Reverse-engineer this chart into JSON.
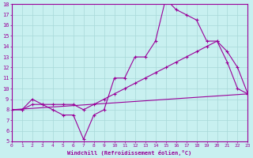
{
  "xlabel": "Windchill (Refroidissement éolien,°C)",
  "background_color": "#c8f0f0",
  "grid_color": "#a8d8d8",
  "line_color": "#990099",
  "xlim": [
    0,
    23
  ],
  "ylim": [
    5,
    18
  ],
  "xticks": [
    0,
    1,
    2,
    3,
    4,
    5,
    6,
    7,
    8,
    9,
    10,
    11,
    12,
    13,
    14,
    15,
    16,
    17,
    18,
    19,
    20,
    21,
    22,
    23
  ],
  "yticks": [
    5,
    6,
    7,
    8,
    9,
    10,
    11,
    12,
    13,
    14,
    15,
    16,
    17,
    18
  ],
  "line1_x": [
    0,
    1,
    2,
    3,
    4,
    5,
    6,
    7,
    8,
    9,
    10,
    11,
    12,
    13,
    14,
    15,
    16,
    17,
    18,
    19,
    20,
    21,
    22,
    23
  ],
  "line1_y": [
    8.0,
    8.0,
    9.0,
    8.5,
    8.0,
    7.5,
    7.5,
    5.2,
    7.5,
    8.0,
    11.0,
    11.0,
    13.0,
    13.0,
    14.5,
    18.5,
    17.5,
    17.0,
    16.5,
    14.5,
    14.5,
    12.5,
    10.0,
    9.5
  ],
  "line2_x": [
    0,
    1,
    2,
    3,
    4,
    5,
    6,
    7,
    8,
    9,
    10,
    11,
    12,
    13,
    14,
    15,
    16,
    17,
    18,
    19,
    20,
    21,
    22,
    23
  ],
  "line2_y": [
    8.0,
    8.0,
    8.5,
    8.5,
    8.5,
    8.5,
    8.5,
    8.0,
    8.5,
    9.0,
    9.5,
    10.0,
    10.5,
    11.0,
    11.5,
    12.0,
    12.5,
    13.0,
    13.5,
    14.0,
    14.5,
    13.5,
    12.0,
    9.5
  ],
  "line3_x": [
    0,
    23
  ],
  "line3_y": [
    8.0,
    9.5
  ]
}
